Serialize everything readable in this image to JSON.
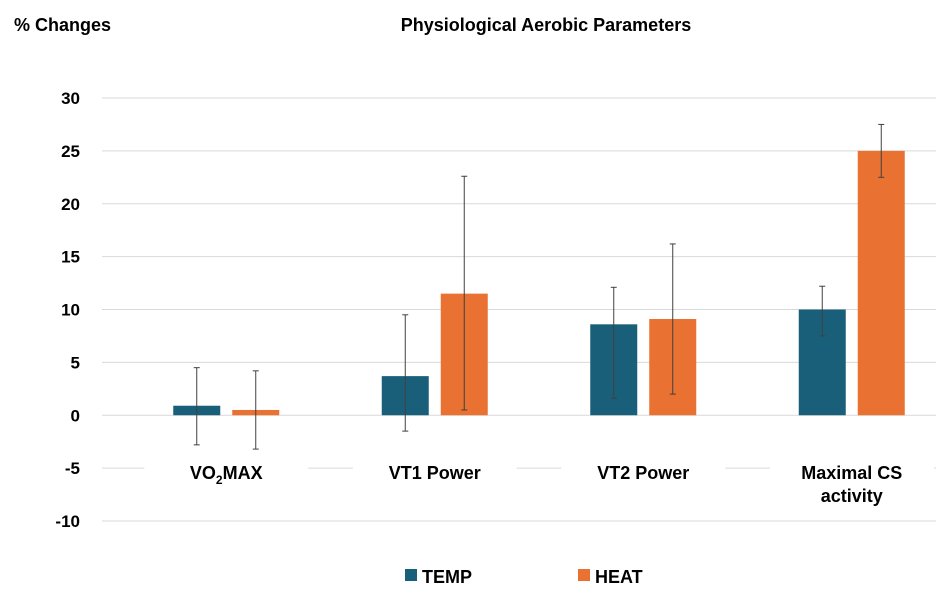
{
  "chart_data": {
    "type": "bar",
    "title": "Physiological Aerobic Parameters",
    "ylabel": "% Changes",
    "categories": [
      {
        "main": "VO",
        "sub": "2",
        "rest": "MAX"
      },
      {
        "lines": [
          "VT1 Power"
        ]
      },
      {
        "lines": [
          "VT2 Power"
        ]
      },
      {
        "lines": [
          "Maximal CS",
          "activity"
        ]
      }
    ],
    "series": [
      {
        "name": "TEMP",
        "color": "#1a5f7a",
        "values": [
          0.9,
          3.7,
          8.6,
          10.0
        ],
        "err_low": [
          -2.8,
          -1.5,
          1.6,
          7.5
        ],
        "err_high": [
          4.5,
          9.5,
          12.1,
          12.2
        ]
      },
      {
        "name": "HEAT",
        "color": "#e97132",
        "values": [
          0.5,
          11.5,
          9.1,
          25.0
        ],
        "err_low": [
          -3.2,
          0.5,
          2.0,
          22.5
        ],
        "err_high": [
          4.2,
          22.6,
          16.2,
          27.5
        ]
      }
    ],
    "ylim": [
      -10,
      30
    ],
    "yticks": [
      30,
      25,
      20,
      15,
      10,
      5,
      0,
      -5,
      -10
    ],
    "grid": true,
    "legend": "bottom"
  }
}
